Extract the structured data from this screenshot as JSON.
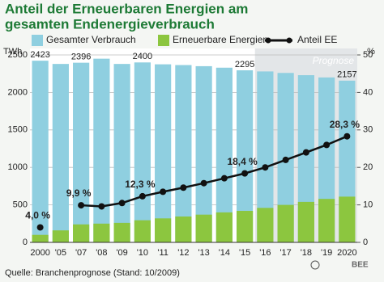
{
  "chart_data": {
    "type": "bar",
    "title": [
      "Anteil der Erneuerbaren Energien am",
      "gesamten Endenergieverbrauch"
    ],
    "y_unit": "TWh",
    "y2_unit": "%",
    "categories": [
      "2000",
      "'05",
      "'07",
      "'08",
      "'09",
      "'10",
      "'11",
      "'12",
      "'13",
      "'14",
      "'15",
      "'16",
      "'17",
      "'18",
      "'19",
      "2020"
    ],
    "series": [
      {
        "name": "Gesamter Verbrauch",
        "color": "#8fcfe0",
        "values": [
          2423,
          2380,
          2396,
          2450,
          2380,
          2400,
          2375,
          2365,
          2350,
          2330,
          2295,
          2280,
          2260,
          2230,
          2200,
          2157
        ],
        "value_labels": [
          "2423",
          null,
          "2396",
          null,
          null,
          "2400",
          null,
          null,
          null,
          null,
          "2295",
          null,
          null,
          null,
          null,
          "2157"
        ]
      },
      {
        "name": "Erneuerbare Energien",
        "color": "#8cc63f",
        "values": [
          100,
          160,
          240,
          250,
          260,
          295,
          320,
          345,
          370,
          400,
          420,
          460,
          500,
          540,
          580,
          610
        ]
      },
      {
        "name": "Anteil EE",
        "type": "line",
        "axis": "y2",
        "color": "#111111",
        "values": [
          4.0,
          null,
          9.9,
          9.6,
          10.5,
          12.3,
          13.5,
          14.6,
          15.8,
          17.1,
          18.4,
          20.0,
          22.0,
          24.0,
          26.0,
          28.3
        ],
        "value_labels": [
          "4,0 %",
          null,
          "9,9 %",
          null,
          null,
          "12,3 %",
          null,
          null,
          null,
          null,
          "18,4 %",
          null,
          null,
          null,
          null,
          "28,3 %"
        ]
      }
    ],
    "annotation": "Prognose",
    "ylim": [
      0,
      2500
    ],
    "yticks": [
      0,
      500,
      1000,
      1500,
      2000,
      2500
    ],
    "y2lim": [
      0,
      50
    ],
    "y2ticks": [
      0,
      10,
      20,
      30,
      40,
      50
    ],
    "grid": true,
    "source": "Quelle: Branchenprognose (Stand: 10/2009)",
    "logo": "BEE"
  }
}
